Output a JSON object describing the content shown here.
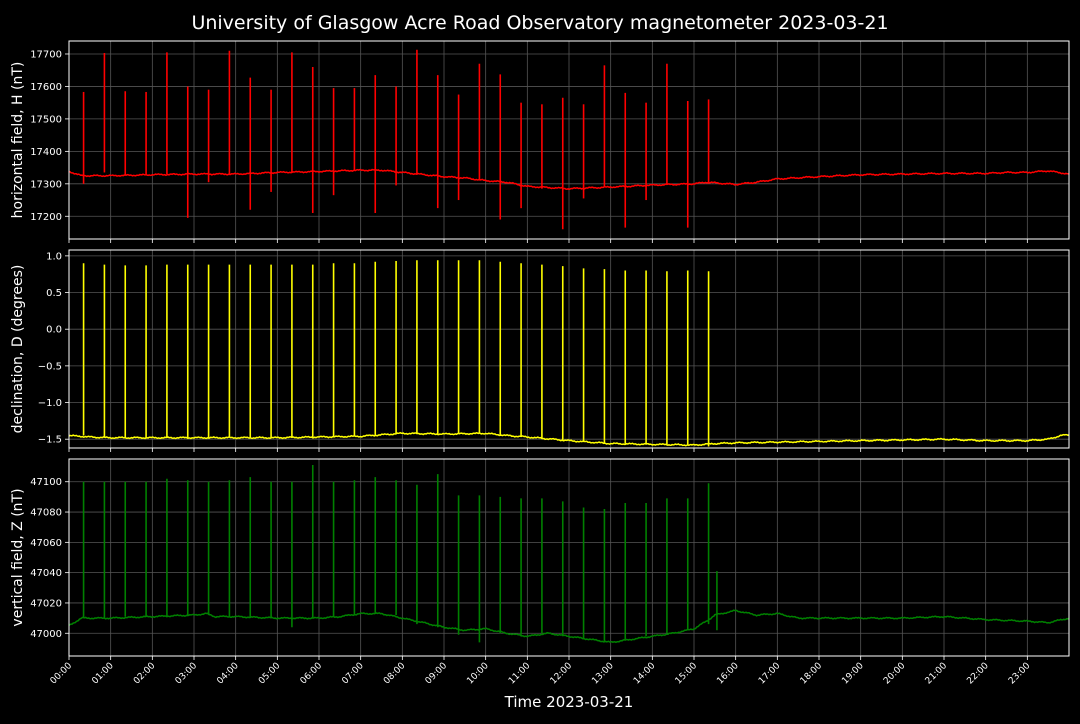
{
  "chart_data": {
    "type": "line",
    "title": "University of Glasgow Acre Road Observatory magnetometer 2023-03-21",
    "xlabel": "Time 2023-03-21",
    "x_ticks": [
      "00:00",
      "01:00",
      "02:00",
      "03:00",
      "04:00",
      "05:00",
      "06:00",
      "07:00",
      "08:00",
      "09:00",
      "10:00",
      "11:00",
      "12:00",
      "13:00",
      "14:00",
      "15:00",
      "16:00",
      "17:00",
      "18:00",
      "19:00",
      "20:00",
      "21:00",
      "22:00",
      "23:00"
    ],
    "x_range_hours": [
      0,
      24
    ],
    "grid": true,
    "panels": [
      {
        "ylabel": "horizontal field, H (nT)",
        "color": "#ff0000",
        "ylim": [
          17130,
          17740
        ],
        "y_ticks": [
          17200,
          17300,
          17400,
          17500,
          17600,
          17700
        ],
        "baseline": [
          [
            0,
            17338
          ],
          [
            0.3,
            17325
          ],
          [
            1,
            17325
          ],
          [
            2,
            17328
          ],
          [
            3,
            17330
          ],
          [
            4,
            17330
          ],
          [
            5,
            17335
          ],
          [
            6,
            17338
          ],
          [
            7,
            17342
          ],
          [
            7.5,
            17342
          ],
          [
            8,
            17335
          ],
          [
            9,
            17322
          ],
          [
            9.5,
            17318
          ],
          [
            10,
            17310
          ],
          [
            10.5,
            17305
          ],
          [
            11,
            17292
          ],
          [
            12,
            17285
          ],
          [
            13,
            17290
          ],
          [
            14,
            17296
          ],
          [
            15,
            17300
          ],
          [
            15.3,
            17305
          ],
          [
            15.5,
            17303
          ],
          [
            16,
            17298
          ],
          [
            16.5,
            17305
          ],
          [
            17,
            17315
          ],
          [
            18,
            17322
          ],
          [
            19,
            17328
          ],
          [
            20,
            17330
          ],
          [
            21,
            17332
          ],
          [
            22,
            17332
          ],
          [
            22.5,
            17335
          ],
          [
            23,
            17335
          ],
          [
            23.5,
            17340
          ],
          [
            24,
            17330
          ]
        ],
        "spikes": [
          [
            0.35,
            17583,
            17300
          ],
          [
            0.85,
            17703,
            17335
          ],
          [
            1.35,
            17585,
            17325
          ],
          [
            1.85,
            17583,
            17330
          ],
          [
            2.35,
            17705,
            17330
          ],
          [
            2.85,
            17600,
            17195
          ],
          [
            3.35,
            17590,
            17305
          ],
          [
            3.85,
            17710,
            17330
          ],
          [
            4.35,
            17627,
            17220
          ],
          [
            4.85,
            17590,
            17275
          ],
          [
            5.35,
            17705,
            17335
          ],
          [
            5.85,
            17660,
            17210
          ],
          [
            6.35,
            17595,
            17265
          ],
          [
            6.85,
            17595,
            17340
          ],
          [
            7.35,
            17635,
            17210
          ],
          [
            7.85,
            17600,
            17295
          ],
          [
            8.35,
            17713,
            17330
          ],
          [
            8.85,
            17635,
            17225
          ],
          [
            9.35,
            17575,
            17250
          ],
          [
            9.85,
            17670,
            17310
          ],
          [
            10.35,
            17637,
            17190
          ],
          [
            10.85,
            17550,
            17225
          ],
          [
            11.35,
            17545,
            17285
          ],
          [
            11.85,
            17565,
            17160
          ],
          [
            12.35,
            17545,
            17255
          ],
          [
            12.85,
            17665,
            17290
          ],
          [
            13.35,
            17580,
            17165
          ],
          [
            13.85,
            17550,
            17250
          ],
          [
            14.35,
            17670,
            17300
          ],
          [
            14.85,
            17555,
            17165
          ],
          [
            15.35,
            17560,
            17300
          ]
        ]
      },
      {
        "ylabel": "declination, D (degrees)",
        "color": "#ffff00",
        "ylim": [
          -1.62,
          1.08
        ],
        "y_ticks": [
          -1.5,
          -1.0,
          -0.5,
          0.0,
          0.5,
          1.0
        ],
        "y_tick_labels": [
          "−1.5",
          "−1.0",
          "−0.5",
          "0.0",
          "0.5",
          "1.0"
        ],
        "baseline": [
          [
            0,
            -1.45
          ],
          [
            0.5,
            -1.47
          ],
          [
            1,
            -1.48
          ],
          [
            2,
            -1.48
          ],
          [
            3,
            -1.48
          ],
          [
            4,
            -1.48
          ],
          [
            5,
            -1.48
          ],
          [
            6,
            -1.47
          ],
          [
            7,
            -1.46
          ],
          [
            8,
            -1.42
          ],
          [
            9,
            -1.43
          ],
          [
            10,
            -1.42
          ],
          [
            10.5,
            -1.45
          ],
          [
            11,
            -1.47
          ],
          [
            12,
            -1.52
          ],
          [
            13,
            -1.56
          ],
          [
            14,
            -1.57
          ],
          [
            15,
            -1.58
          ],
          [
            15.5,
            -1.56
          ],
          [
            16,
            -1.55
          ],
          [
            17,
            -1.54
          ],
          [
            18,
            -1.53
          ],
          [
            19,
            -1.52
          ],
          [
            20,
            -1.51
          ],
          [
            21,
            -1.5
          ],
          [
            22,
            -1.52
          ],
          [
            23,
            -1.52
          ],
          [
            23.5,
            -1.5
          ],
          [
            23.8,
            -1.45
          ],
          [
            24,
            -1.44
          ]
        ],
        "spikes": [
          [
            0.35,
            0.9,
            -1.45
          ],
          [
            0.85,
            0.88,
            -1.48
          ],
          [
            1.35,
            0.87,
            -1.48
          ],
          [
            1.85,
            0.87,
            -1.48
          ],
          [
            2.35,
            0.88,
            -1.48
          ],
          [
            2.85,
            0.88,
            -1.48
          ],
          [
            3.35,
            0.88,
            -1.48
          ],
          [
            3.85,
            0.88,
            -1.48
          ],
          [
            4.35,
            0.88,
            -1.48
          ],
          [
            4.85,
            0.88,
            -1.48
          ],
          [
            5.35,
            0.88,
            -1.48
          ],
          [
            5.85,
            0.88,
            -1.47
          ],
          [
            6.35,
            0.9,
            -1.47
          ],
          [
            6.85,
            0.9,
            -1.46
          ],
          [
            7.35,
            0.92,
            -1.45
          ],
          [
            7.85,
            0.93,
            -1.43
          ],
          [
            8.35,
            0.94,
            -1.42
          ],
          [
            8.85,
            0.94,
            -1.43
          ],
          [
            9.35,
            0.94,
            -1.43
          ],
          [
            9.85,
            0.94,
            -1.42
          ],
          [
            10.35,
            0.92,
            -1.45
          ],
          [
            10.85,
            0.9,
            -1.47
          ],
          [
            11.35,
            0.88,
            -1.49
          ],
          [
            11.85,
            0.86,
            -1.52
          ],
          [
            12.35,
            0.83,
            -1.54
          ],
          [
            12.85,
            0.82,
            -1.56
          ],
          [
            13.35,
            0.8,
            -1.56
          ],
          [
            13.85,
            0.8,
            -1.57
          ],
          [
            14.35,
            0.79,
            -1.57
          ],
          [
            14.85,
            0.8,
            -1.58
          ],
          [
            15.35,
            0.79,
            -1.6
          ]
        ]
      },
      {
        "ylabel": "vertical field, Z (nT)",
        "color": "#008000",
        "ylim": [
          46985,
          47115
        ],
        "y_ticks": [
          47000,
          47020,
          47040,
          47060,
          47080,
          47100
        ],
        "baseline": [
          [
            0,
            47005
          ],
          [
            0.3,
            47010
          ],
          [
            1,
            47010
          ],
          [
            2,
            47011
          ],
          [
            3,
            47012
          ],
          [
            3.3,
            47013
          ],
          [
            3.5,
            47011
          ],
          [
            4,
            47011
          ],
          [
            5,
            47010
          ],
          [
            6,
            47010
          ],
          [
            6.5,
            47011
          ],
          [
            7,
            47013
          ],
          [
            7.5,
            47013
          ],
          [
            8,
            47010
          ],
          [
            8.5,
            47007
          ],
          [
            9,
            47004
          ],
          [
            9.5,
            47002
          ],
          [
            10,
            47003
          ],
          [
            10.5,
            47000
          ],
          [
            11,
            46998
          ],
          [
            11.5,
            47000
          ],
          [
            12,
            46998
          ],
          [
            12.5,
            46996
          ],
          [
            13,
            46994
          ],
          [
            13.5,
            46996
          ],
          [
            14,
            46998
          ],
          [
            14.5,
            47000
          ],
          [
            15,
            47003
          ],
          [
            15.3,
            47008
          ],
          [
            15.5,
            47012
          ],
          [
            16,
            47015
          ],
          [
            16.5,
            47012
          ],
          [
            17,
            47013
          ],
          [
            17.5,
            47010
          ],
          [
            18,
            47010
          ],
          [
            19,
            47010
          ],
          [
            20,
            47010
          ],
          [
            21,
            47011
          ],
          [
            22,
            47009
          ],
          [
            23,
            47008
          ],
          [
            23.5,
            47007
          ],
          [
            24,
            47010
          ]
        ],
        "spikes": [
          [
            0.35,
            47100,
            47010
          ],
          [
            0.85,
            47100,
            47010
          ],
          [
            1.35,
            47100,
            47011
          ],
          [
            1.85,
            47100,
            47011
          ],
          [
            2.35,
            47102,
            47011
          ],
          [
            2.85,
            47101,
            47012
          ],
          [
            3.35,
            47100,
            47012
          ],
          [
            3.85,
            47101,
            47011
          ],
          [
            4.35,
            47103,
            47010
          ],
          [
            4.85,
            47100,
            47010
          ],
          [
            5.35,
            47100,
            47004
          ],
          [
            5.85,
            47111,
            47010
          ],
          [
            6.35,
            47100,
            47011
          ],
          [
            6.85,
            47101,
            47012
          ],
          [
            7.35,
            47103,
            47013
          ],
          [
            7.85,
            47101,
            47012
          ],
          [
            8.35,
            47098,
            47006
          ],
          [
            8.85,
            47105,
            47004
          ],
          [
            9.35,
            47091,
            46999
          ],
          [
            9.85,
            47091,
            46994
          ],
          [
            10.35,
            47090,
            47000
          ],
          [
            10.85,
            47089,
            46999
          ],
          [
            11.35,
            47089,
            47000
          ],
          [
            11.85,
            47087,
            46998
          ],
          [
            12.35,
            47083,
            46996
          ],
          [
            12.85,
            47082,
            46994
          ],
          [
            13.35,
            47086,
            46996
          ],
          [
            13.85,
            47086,
            46998
          ],
          [
            14.35,
            47089,
            47000
          ],
          [
            14.85,
            47089,
            47002
          ],
          [
            15.35,
            47099,
            47006
          ],
          [
            15.55,
            47041,
            47002
          ]
        ]
      }
    ]
  }
}
